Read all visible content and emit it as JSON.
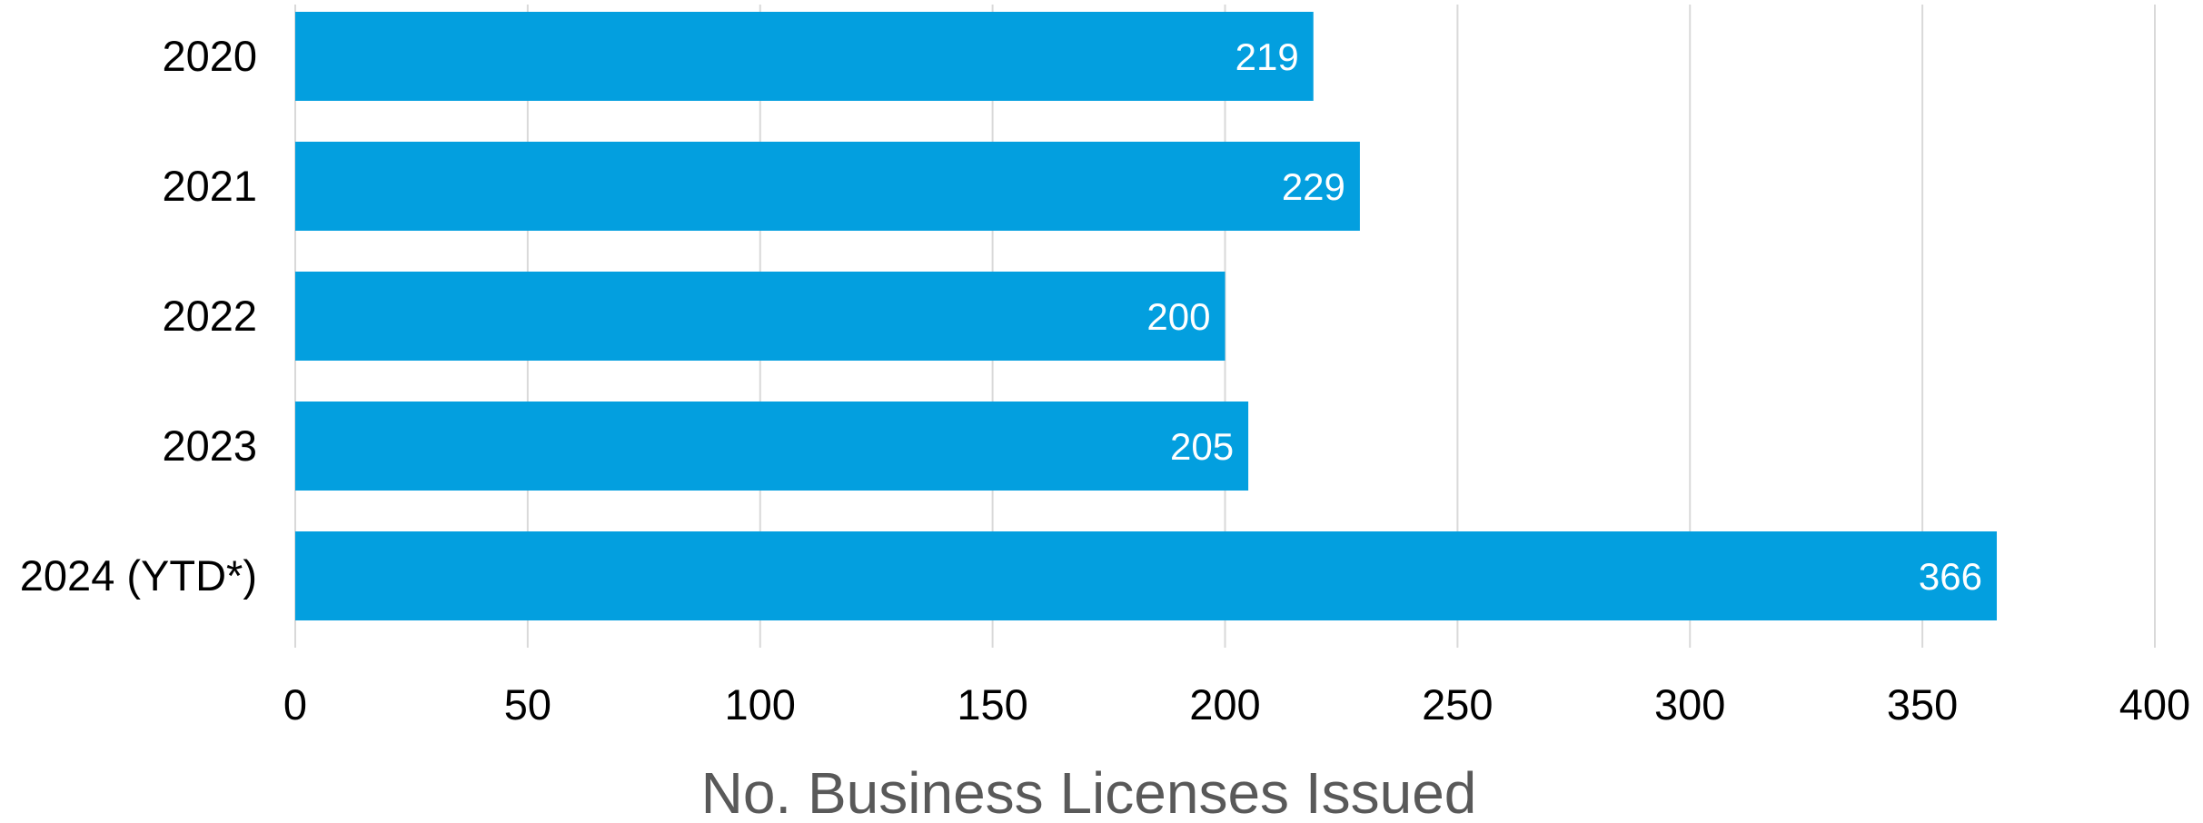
{
  "chart_data": {
    "type": "bar",
    "orientation": "horizontal",
    "categories": [
      "2020",
      "2021",
      "2022",
      "2023",
      "2024 (YTD*)"
    ],
    "values": [
      219,
      229,
      200,
      205,
      366
    ],
    "xlabel": "No. Business Licenses Issued",
    "ylabel": "",
    "xlim": [
      0,
      400
    ],
    "xticks": [
      "0",
      "50",
      "100",
      "150",
      "200",
      "250",
      "300",
      "350",
      "400"
    ],
    "grid": true,
    "data_labels": true,
    "colors": {
      "bar": "#039fdf",
      "grid": "#d9d9d9",
      "axis_title": "#595959"
    }
  }
}
